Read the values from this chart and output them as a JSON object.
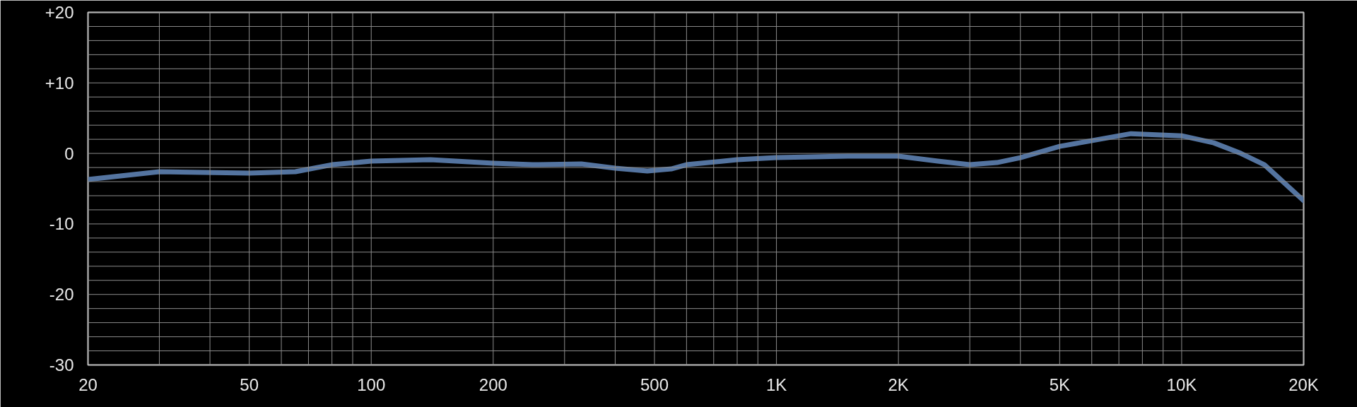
{
  "chart_data": {
    "type": "line",
    "log": "x",
    "grid": true,
    "line_style": "solid",
    "marker": "none",
    "x": [
      20,
      30,
      50,
      65,
      80,
      100,
      140,
      200,
      250,
      330,
      400,
      480,
      550,
      600,
      800,
      1000,
      1500,
      2000,
      2500,
      3000,
      3500,
      4000,
      5000,
      7500,
      10000,
      12000,
      14000,
      16000,
      20000
    ],
    "series": [
      {
        "color": "#5474a0",
        "values": [
          -3.7,
          -2.6,
          -2.8,
          -2.6,
          -1.6,
          -1.1,
          -0.9,
          -1.4,
          -1.6,
          -1.5,
          -2.1,
          -2.5,
          -2.2,
          -1.6,
          -0.9,
          -0.6,
          -0.4,
          -0.4,
          -1.1,
          -1.6,
          -1.3,
          -0.6,
          1.0,
          2.8,
          2.5,
          1.5,
          0.0,
          -1.6,
          -6.7
        ]
      }
    ],
    "xlim": [
      20,
      20000
    ],
    "xticks": [
      20,
      {
        "value": 30,
        "label": null
      },
      {
        "value": 40,
        "label": null
      },
      50,
      {
        "value": 60,
        "label": null
      },
      {
        "value": 70,
        "label": null
      },
      {
        "value": 80,
        "label": null
      },
      {
        "value": 90,
        "label": null
      },
      100,
      200,
      {
        "value": 300,
        "label": null
      },
      {
        "value": 400,
        "label": null
      },
      500,
      {
        "value": 600,
        "label": null
      },
      {
        "value": 700,
        "label": null
      },
      {
        "value": 800,
        "label": null
      },
      {
        "value": 900,
        "label": null
      },
      {
        "value": 1000,
        "label": "1K"
      },
      {
        "value": 2000,
        "label": "2K"
      },
      {
        "value": 3000,
        "label": null
      },
      {
        "value": 4000,
        "label": null
      },
      {
        "value": 5000,
        "label": "5K"
      },
      {
        "value": 6000,
        "label": null
      },
      {
        "value": 7000,
        "label": null
      },
      {
        "value": 8000,
        "label": null
      },
      {
        "value": 9000,
        "label": null
      },
      {
        "value": 10000,
        "label": "10K"
      },
      {
        "value": 20000,
        "label": "20K"
      }
    ],
    "ylim": [
      -30,
      20
    ],
    "yticks": [
      -30,
      {
        "value": -28,
        "label": null
      },
      {
        "value": -26,
        "label": null
      },
      {
        "value": -24,
        "label": null
      },
      {
        "value": -22,
        "label": null
      },
      -20,
      {
        "value": -18,
        "label": null
      },
      {
        "value": -16,
        "label": null
      },
      {
        "value": -14,
        "label": null
      },
      {
        "value": -12,
        "label": null
      },
      -10,
      {
        "value": -8,
        "label": null
      },
      {
        "value": -6,
        "label": null
      },
      {
        "value": -4,
        "label": null
      },
      {
        "value": -2,
        "label": null
      },
      0,
      {
        "value": 2,
        "label": null
      },
      {
        "value": 4,
        "label": null
      },
      {
        "value": 6,
        "label": null
      },
      {
        "value": 8,
        "label": null
      },
      {
        "value": 10,
        "label": "+10"
      },
      {
        "value": 12,
        "label": null
      },
      {
        "value": 14,
        "label": null
      },
      {
        "value": 16,
        "label": null
      },
      {
        "value": 18,
        "label": null
      },
      {
        "value": 20,
        "label": "+20"
      }
    ]
  }
}
